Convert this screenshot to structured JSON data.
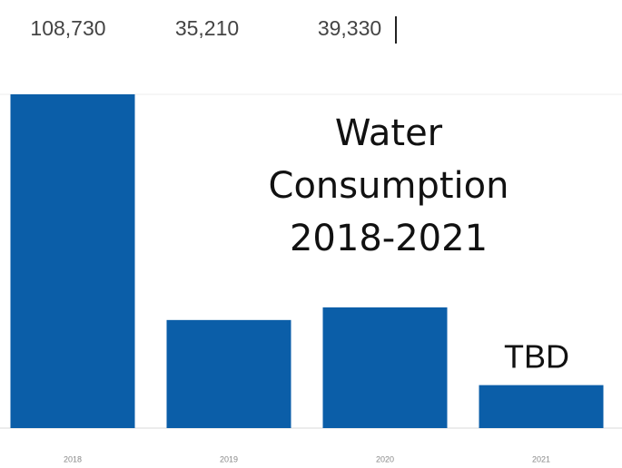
{
  "chart_data": {
    "type": "bar",
    "title": "Water Consumption 2018-2021",
    "categories": [
      "2018",
      "2019",
      "2020",
      "2021"
    ],
    "values": [
      108730,
      35210,
      39330,
      14000
    ],
    "value_labels": [
      "108,730",
      "35,210",
      "39,330",
      null
    ],
    "annotation": "TBD",
    "color": "#0b5ea8"
  }
}
